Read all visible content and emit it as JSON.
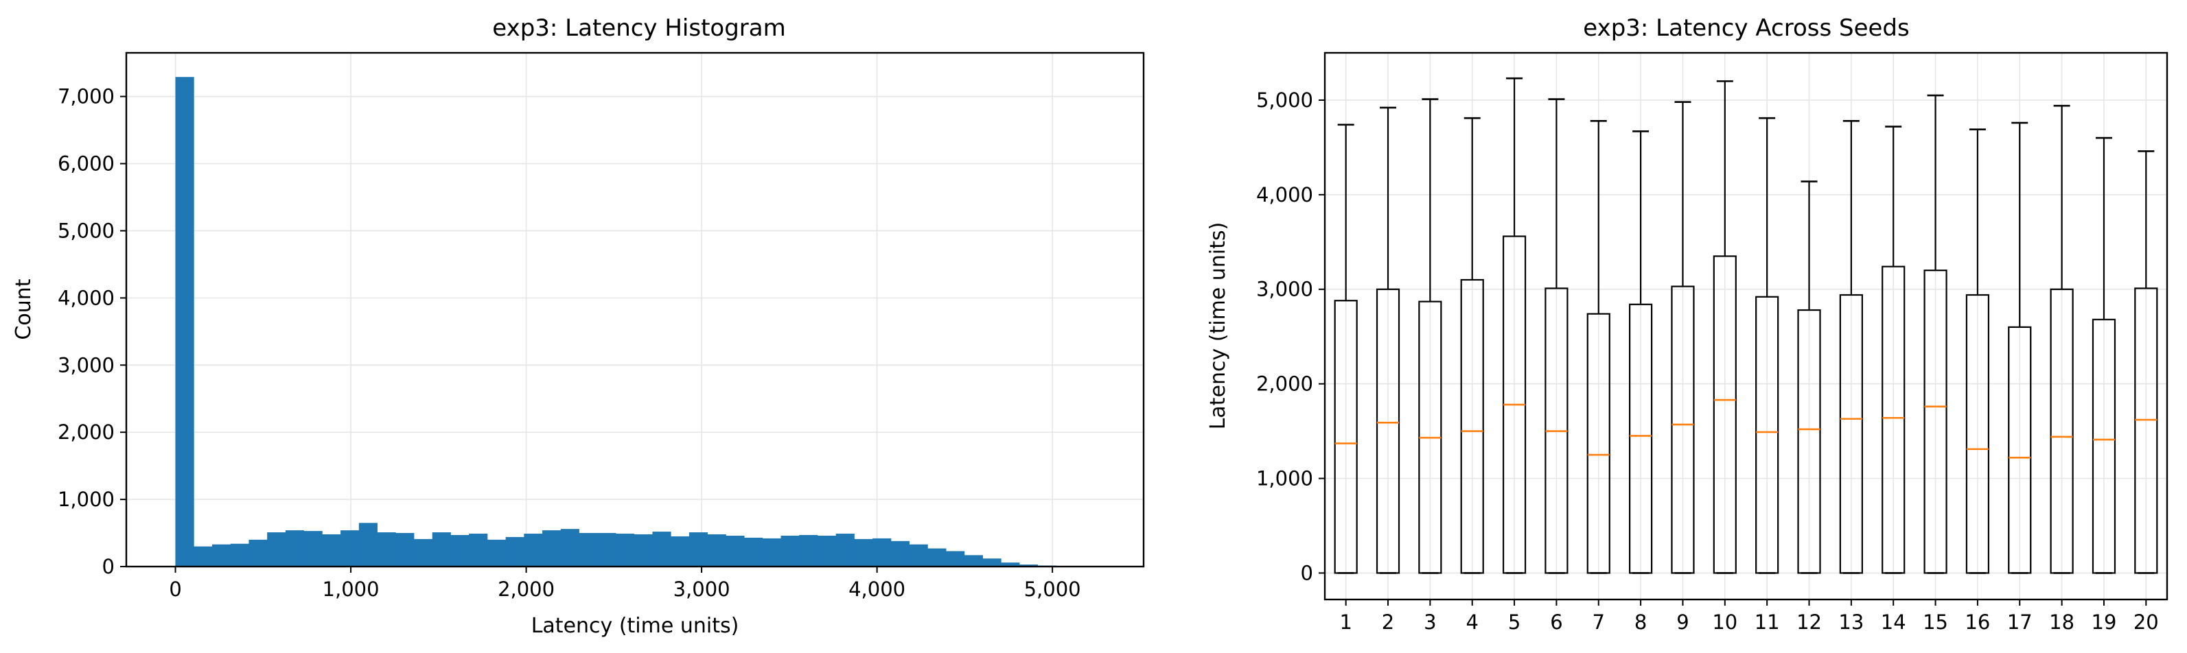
{
  "chart_data": [
    {
      "type": "bar",
      "subtype": "histogram",
      "title": "exp3: Latency Histogram",
      "xlabel": "Latency (time units)",
      "ylabel": "Count",
      "xlim": [
        -280,
        5520
      ],
      "ylim": [
        0,
        7650
      ],
      "xticks": [
        0,
        1000,
        2000,
        3000,
        4000,
        5000
      ],
      "xtick_labels": [
        "0",
        "1,000",
        "2,000",
        "3,000",
        "4,000",
        "5,000"
      ],
      "yticks": [
        0,
        1000,
        2000,
        3000,
        4000,
        5000,
        6000,
        7000
      ],
      "ytick_labels": [
        "0",
        "1,000",
        "2,000",
        "3,000",
        "4,000",
        "5,000",
        "6,000",
        "7,000"
      ],
      "bin_start": 0,
      "bin_width": 104.6,
      "values": [
        7290,
        300,
        330,
        340,
        400,
        510,
        540,
        530,
        480,
        540,
        650,
        510,
        500,
        410,
        510,
        470,
        490,
        400,
        440,
        490,
        540,
        560,
        500,
        500,
        490,
        480,
        520,
        450,
        510,
        480,
        460,
        430,
        420,
        460,
        470,
        460,
        490,
        410,
        420,
        380,
        330,
        270,
        230,
        170,
        120,
        60,
        30,
        15,
        5,
        2
      ],
      "color": "#1f77b4",
      "grid": true
    },
    {
      "type": "box",
      "title": "exp3: Latency Across Seeds",
      "xlabel": "",
      "ylabel": "Latency (time units)",
      "ylim": [
        -280,
        5500
      ],
      "yticks": [
        0,
        1000,
        2000,
        3000,
        4000,
        5000
      ],
      "ytick_labels": [
        "0",
        "1,000",
        "2,000",
        "3,000",
        "4,000",
        "5,000"
      ],
      "categories": [
        "1",
        "2",
        "3",
        "4",
        "5",
        "6",
        "7",
        "8",
        "9",
        "10",
        "11",
        "12",
        "13",
        "14",
        "15",
        "16",
        "17",
        "18",
        "19",
        "20"
      ],
      "boxes": [
        {
          "min": 0,
          "q1": 0,
          "median": 1370,
          "q3": 2880,
          "max": 4740
        },
        {
          "min": 0,
          "q1": 0,
          "median": 1590,
          "q3": 3000,
          "max": 4920
        },
        {
          "min": 0,
          "q1": 0,
          "median": 1430,
          "q3": 2870,
          "max": 5010
        },
        {
          "min": 0,
          "q1": 0,
          "median": 1500,
          "q3": 3100,
          "max": 4810
        },
        {
          "min": 0,
          "q1": 0,
          "median": 1780,
          "q3": 3560,
          "max": 5230
        },
        {
          "min": 0,
          "q1": 0,
          "median": 1500,
          "q3": 3010,
          "max": 5010
        },
        {
          "min": 0,
          "q1": 0,
          "median": 1250,
          "q3": 2740,
          "max": 4780
        },
        {
          "min": 0,
          "q1": 0,
          "median": 1450,
          "q3": 2840,
          "max": 4670
        },
        {
          "min": 0,
          "q1": 0,
          "median": 1570,
          "q3": 3030,
          "max": 4980
        },
        {
          "min": 0,
          "q1": 0,
          "median": 1830,
          "q3": 3350,
          "max": 5200
        },
        {
          "min": 0,
          "q1": 0,
          "median": 1490,
          "q3": 2920,
          "max": 4810
        },
        {
          "min": 0,
          "q1": 0,
          "median": 1520,
          "q3": 2780,
          "max": 4140
        },
        {
          "min": 0,
          "q1": 0,
          "median": 1630,
          "q3": 2940,
          "max": 4780
        },
        {
          "min": 0,
          "q1": 0,
          "median": 1640,
          "q3": 3240,
          "max": 4720
        },
        {
          "min": 0,
          "q1": 0,
          "median": 1760,
          "q3": 3200,
          "max": 5050
        },
        {
          "min": 0,
          "q1": 0,
          "median": 1310,
          "q3": 2940,
          "max": 4690
        },
        {
          "min": 0,
          "q1": 0,
          "median": 1220,
          "q3": 2600,
          "max": 4760
        },
        {
          "min": 0,
          "q1": 0,
          "median": 1440,
          "q3": 3000,
          "max": 4940
        },
        {
          "min": 0,
          "q1": 0,
          "median": 1410,
          "q3": 2680,
          "max": 4600
        },
        {
          "min": 0,
          "q1": 0,
          "median": 1620,
          "q3": 3010,
          "max": 4460
        }
      ],
      "box_color": "#000000",
      "median_color": "#ff7f0e",
      "grid": true
    }
  ]
}
